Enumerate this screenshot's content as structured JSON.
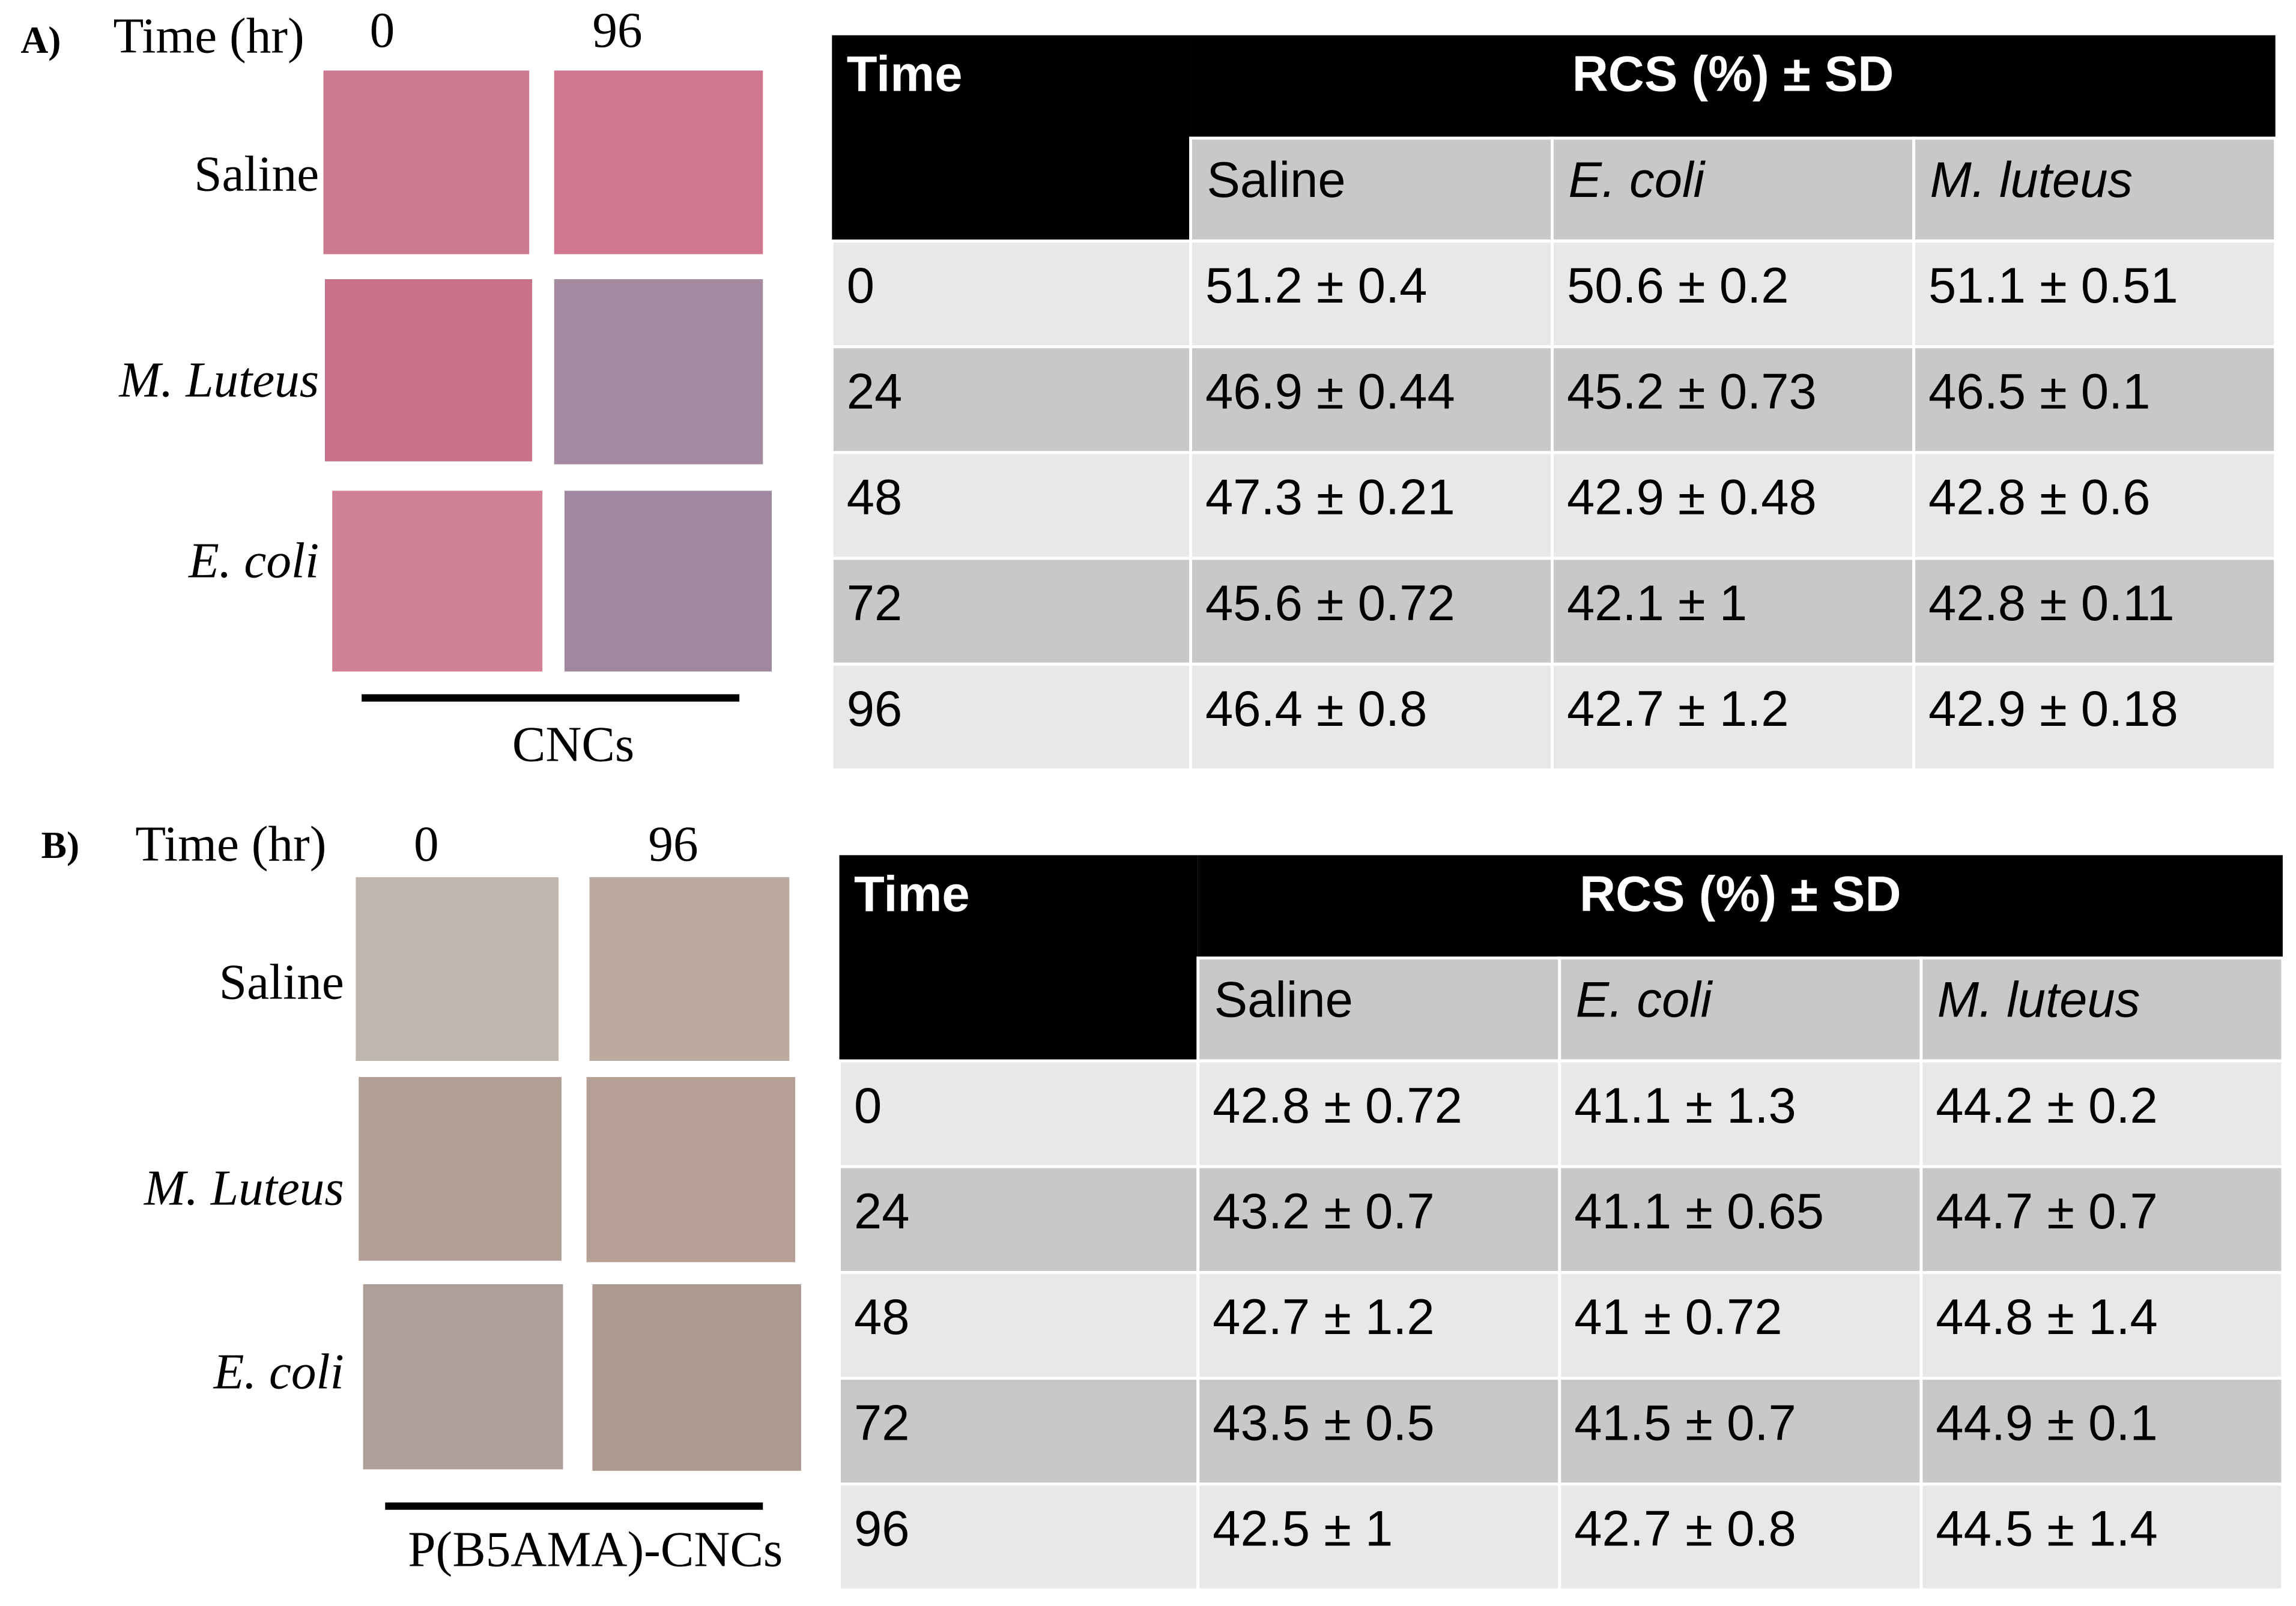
{
  "panels": [
    {
      "label": "A)",
      "time_label": "Time (hr)",
      "times": [
        "0",
        "96"
      ],
      "samples": [
        "Saline",
        "M. Luteus",
        "E. coli"
      ],
      "caption": "CNCs",
      "table": {
        "corner": "Time",
        "group_header": "RCS (%) ± SD",
        "columns": [
          "Saline",
          "E. coli",
          "M. luteus"
        ],
        "rows": [
          [
            "0",
            "51.2 ± 0.4",
            "50.6 ± 0.2",
            "51.1 ± 0.51"
          ],
          [
            "24",
            "46.9 ± 0.44",
            "45.2 ± 0.73",
            "46.5 ± 0.1"
          ],
          [
            "48",
            "47.3 ± 0.21",
            "42.9 ± 0.48",
            "42.8 ± 0.6"
          ],
          [
            "72",
            "45.6 ± 0.72",
            "42.1 ± 1",
            "42.8 ± 0.11"
          ],
          [
            "96",
            "46.4 ± 0.8",
            "42.7 ± 1.2",
            "42.9 ± 0.18"
          ]
        ]
      }
    },
    {
      "label": "B)",
      "time_label": "Time (hr)",
      "times": [
        "0",
        "96"
      ],
      "samples": [
        "Saline",
        "M. Luteus",
        "E. coli"
      ],
      "caption": "P(B5AMA)-CNCs",
      "table": {
        "corner": "Time",
        "group_header": "RCS (%) ± SD",
        "columns": [
          "Saline",
          "E. coli",
          "M. luteus"
        ],
        "rows": [
          [
            "0",
            "42.8 ± 0.72",
            "41.1 ± 1.3",
            "44.2 ± 0.2"
          ],
          [
            "24",
            "43.2 ± 0.7",
            "41.1 ± 0.65",
            "44.7 ± 0.7"
          ],
          [
            "48",
            "42.7 ± 1.2",
            "41 ± 0.72",
            "44.8 ± 1.4"
          ],
          [
            "72",
            "43.5 ± 0.5",
            "41.5 ± 0.7",
            "44.9 ± 0.1"
          ],
          [
            "96",
            "42.5 ± 1",
            "42.7 ± 0.8",
            "44.5 ± 1.4"
          ]
        ]
      }
    }
  ]
}
